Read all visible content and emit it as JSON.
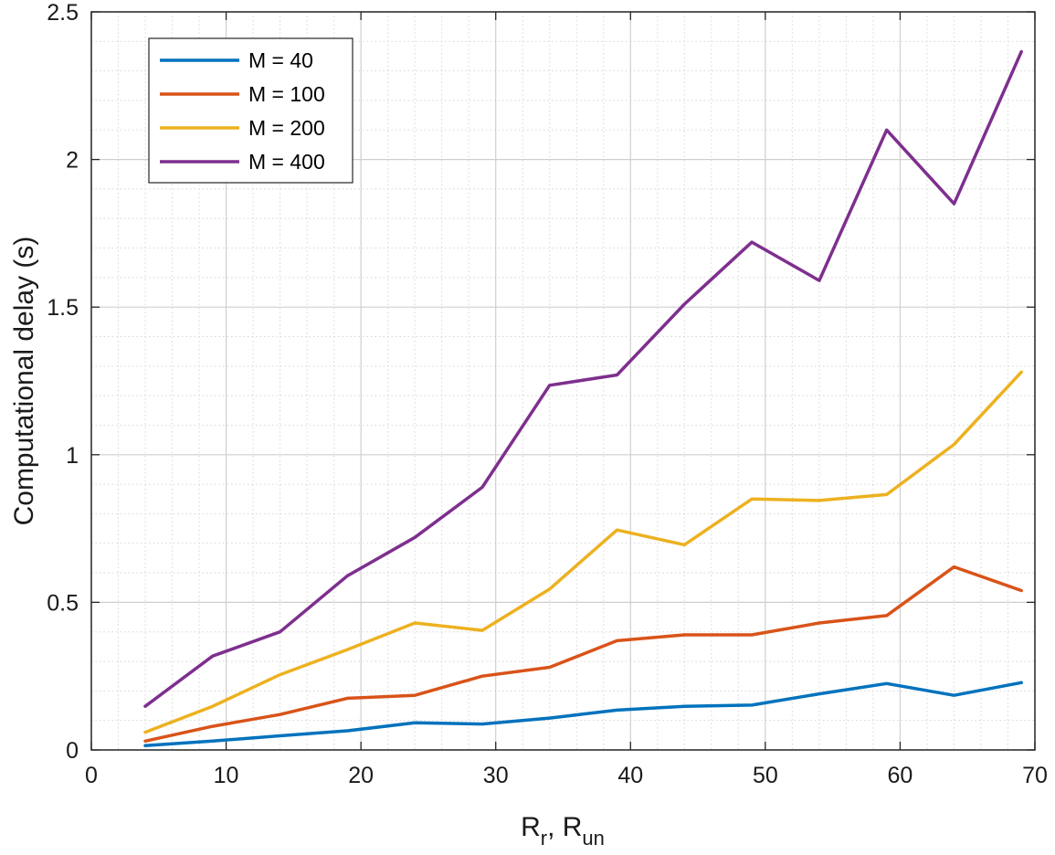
{
  "chart_data": {
    "type": "line",
    "xlabel_main": "R",
    "xlabel_sub1": "r",
    "xlabel_sep": ", R",
    "xlabel_sub2": "un",
    "ylabel": "Computational delay (s)",
    "xlim": [
      0,
      70
    ],
    "ylim": [
      0,
      2.5
    ],
    "xticks": [
      0,
      10,
      20,
      30,
      40,
      50,
      60,
      70
    ],
    "yticks": [
      0,
      0.5,
      1,
      1.5,
      2,
      2.5
    ],
    "xtick_labels": [
      "0",
      "10",
      "20",
      "30",
      "40",
      "50",
      "60",
      "70"
    ],
    "ytick_labels": [
      "0",
      "0.5",
      "1",
      "1.5",
      "2",
      "2.5"
    ],
    "grid": true,
    "minor_grid": true,
    "legend_position": "top-left",
    "x": [
      4,
      9,
      14,
      19,
      24,
      29,
      34,
      39,
      44,
      49,
      54,
      59,
      64,
      69
    ],
    "series": [
      {
        "name": "M = 40",
        "color": "#0072bd",
        "values": [
          0.015,
          0.03,
          0.048,
          0.065,
          0.092,
          0.088,
          0.108,
          0.135,
          0.148,
          0.152,
          0.19,
          0.225,
          0.185,
          0.228
        ]
      },
      {
        "name": "M = 100",
        "color": "#d95319",
        "values": [
          0.03,
          0.08,
          0.12,
          0.175,
          0.185,
          0.25,
          0.28,
          0.37,
          0.39,
          0.39,
          0.43,
          0.455,
          0.62,
          0.54
        ]
      },
      {
        "name": "M = 200",
        "color": "#edb120",
        "values": [
          0.06,
          0.148,
          0.255,
          0.34,
          0.43,
          0.405,
          0.545,
          0.745,
          0.695,
          0.85,
          0.845,
          0.865,
          1.035,
          1.28
        ]
      },
      {
        "name": "M = 400",
        "color": "#7e2f8e",
        "values": [
          0.148,
          0.318,
          0.4,
          0.59,
          0.72,
          0.89,
          1.235,
          1.27,
          1.51,
          1.72,
          1.59,
          2.1,
          1.85,
          2.365
        ]
      }
    ]
  }
}
